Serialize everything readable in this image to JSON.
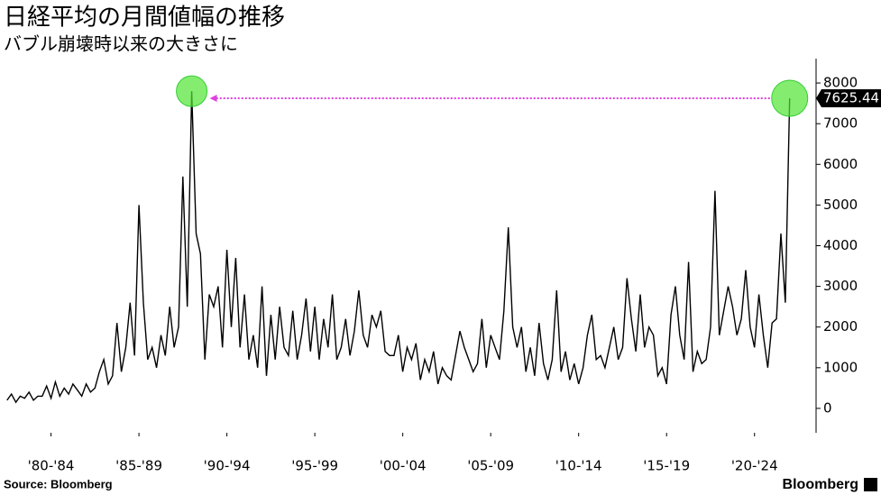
{
  "chart_data": {
    "type": "line",
    "title": "日経平均の月間値幅の推移",
    "subtitle": "バブル崩壊時以来の大きさに",
    "source": "Source: Bloomberg",
    "brand": "Bloomberg",
    "x": [
      1980,
      1980.25,
      1980.5,
      1980.75,
      1981,
      1981.25,
      1981.5,
      1981.75,
      1982,
      1982.25,
      1982.5,
      1982.75,
      1983,
      1983.25,
      1983.5,
      1983.75,
      1984,
      1984.25,
      1984.5,
      1984.75,
      1985,
      1985.25,
      1985.5,
      1985.75,
      1986,
      1986.25,
      1986.5,
      1986.75,
      1987,
      1987.25,
      1987.5,
      1987.75,
      1988,
      1988.25,
      1988.5,
      1988.75,
      1989,
      1989.25,
      1989.5,
      1989.75,
      1990,
      1990.25,
      1990.5,
      1990.75,
      1991,
      1991.25,
      1991.5,
      1991.75,
      1992,
      1992.25,
      1992.5,
      1992.75,
      1993,
      1993.25,
      1993.5,
      1993.75,
      1994,
      1994.25,
      1994.5,
      1994.75,
      1995,
      1995.25,
      1995.5,
      1995.75,
      1996,
      1996.25,
      1996.5,
      1996.75,
      1997,
      1997.25,
      1997.5,
      1997.75,
      1998,
      1998.25,
      1998.5,
      1998.75,
      1999,
      1999.25,
      1999.5,
      1999.75,
      2000,
      2000.25,
      2000.5,
      2000.75,
      2001,
      2001.25,
      2001.5,
      2001.75,
      2002,
      2002.25,
      2002.5,
      2002.75,
      2003,
      2003.25,
      2003.5,
      2003.75,
      2004,
      2004.25,
      2004.5,
      2004.75,
      2005,
      2005.25,
      2005.5,
      2005.75,
      2006,
      2006.25,
      2006.5,
      2006.75,
      2007,
      2007.25,
      2007.5,
      2007.75,
      2008,
      2008.25,
      2008.5,
      2008.75,
      2009,
      2009.25,
      2009.5,
      2009.75,
      2010,
      2010.25,
      2010.5,
      2010.75,
      2011,
      2011.25,
      2011.5,
      2011.75,
      2012,
      2012.25,
      2012.5,
      2012.75,
      2013,
      2013.25,
      2013.5,
      2013.75,
      2014,
      2014.25,
      2014.5,
      2014.75,
      2015,
      2015.25,
      2015.5,
      2015.75,
      2016,
      2016.25,
      2016.5,
      2016.75,
      2017,
      2017.25,
      2017.5,
      2017.75,
      2018,
      2018.25,
      2018.5,
      2018.75,
      2019,
      2019.25,
      2019.5,
      2019.75,
      2020,
      2020.25,
      2020.5,
      2020.75,
      2021,
      2021.25,
      2021.5,
      2021.75,
      2022,
      2022.25,
      2022.5,
      2022.75,
      2023,
      2023.25,
      2023.5,
      2023.75,
      2024,
      2024.25,
      2024.5
    ],
    "series": [
      {
        "color": "#000000",
        "values": [
          200,
          350,
          150,
          300,
          250,
          400,
          200,
          300,
          300,
          550,
          250,
          650,
          300,
          500,
          350,
          600,
          450,
          300,
          600,
          400,
          500,
          900,
          1200,
          600,
          800,
          2100,
          900,
          1500,
          2600,
          1300,
          5000,
          2600,
          1200,
          1500,
          1000,
          1800,
          1300,
          2500,
          1500,
          2000,
          5700,
          2500,
          7800,
          4300,
          3800,
          1200,
          2800,
          2500,
          3000,
          1500,
          3900,
          2000,
          3700,
          1500,
          2800,
          1200,
          1800,
          1000,
          3000,
          800,
          2300,
          1200,
          2500,
          1500,
          1300,
          2400,
          1200,
          1800,
          2700,
          1400,
          2500,
          1200,
          2200,
          1500,
          2800,
          1200,
          1500,
          2200,
          1300,
          1900,
          2900,
          1800,
          1500,
          2300,
          2000,
          2400,
          1400,
          1300,
          1300,
          1800,
          900,
          1500,
          1200,
          1600,
          700,
          1200,
          900,
          1400,
          600,
          1000,
          800,
          700,
          1300,
          1900,
          1500,
          1200,
          900,
          1100,
          2200,
          1000,
          1800,
          1500,
          1200,
          2400,
          4450,
          2000,
          1500,
          2000,
          900,
          1500,
          800,
          2100,
          1100,
          700,
          1200,
          2900,
          900,
          1400,
          700,
          1100,
          600,
          1000,
          1800,
          2300,
          1200,
          1300,
          1000,
          1500,
          2000,
          1200,
          1500,
          3200,
          2200,
          1400,
          2800,
          1500,
          2000,
          1800,
          800,
          1000,
          600,
          2300,
          3000,
          1800,
          1200,
          3600,
          900,
          1400,
          1100,
          1200,
          2000,
          5350,
          1800,
          2400,
          3000,
          2500,
          1800,
          2200,
          3400,
          2000,
          1500,
          2800,
          1800,
          1000,
          2100,
          2200,
          4300,
          2600,
          7625.44
        ]
      }
    ],
    "xlim": [
      1979.6,
      2026.0
    ],
    "xticks": [
      {
        "value": 1982.5,
        "label": "'80-'84"
      },
      {
        "value": 1987.5,
        "label": "'85-'89"
      },
      {
        "value": 1992.5,
        "label": "'90-'94"
      },
      {
        "value": 1997.5,
        "label": "'95-'99"
      },
      {
        "value": 2002.5,
        "label": "'00-'04"
      },
      {
        "value": 2007.5,
        "label": "'05-'09"
      },
      {
        "value": 2012.5,
        "label": "'10-'14"
      },
      {
        "value": 2017.5,
        "label": "'15-'19"
      },
      {
        "value": 2022.5,
        "label": "'20-'24"
      }
    ],
    "ylim": [
      -600,
      8600
    ],
    "yticks": [
      0,
      1000,
      2000,
      3000,
      4000,
      5000,
      6000,
      7000,
      8000
    ]
  }
}
